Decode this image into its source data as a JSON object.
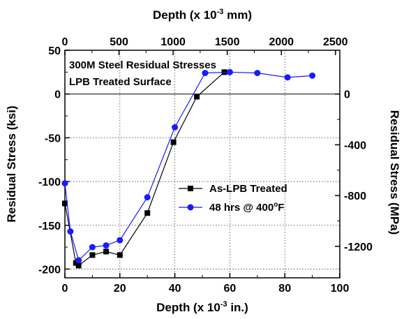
{
  "chart_data": {
    "type": "line",
    "annotation_lines": [
      "300M Steel Residual Stresses",
      "LPB Treated Surface"
    ],
    "xlabel_bottom": "Depth (x 10",
    "xlabel_bottom_exp": "-3",
    "xlabel_bottom_unit": " in.)",
    "xlabel_top": "Depth (x 10",
    "xlabel_top_exp": "-3",
    "xlabel_top_unit": " mm)",
    "ylabel_left": "Residual Stress (ksi)",
    "ylabel_right": "Residual Stress (MPa)",
    "xlim": [
      0,
      100
    ],
    "ylim": [
      -210,
      50
    ],
    "x_top_lim_mm": [
      0,
      2540
    ],
    "x_ticks": [
      0,
      20,
      40,
      60,
      80,
      100
    ],
    "x_tick_labels": [
      "0",
      "20",
      "40",
      "60",
      "80",
      "100"
    ],
    "x_top_ticks": [
      0,
      500,
      1000,
      1500,
      2000,
      2500
    ],
    "x_top_tick_labels": [
      "0",
      "500",
      "1000",
      "1500",
      "2000",
      "2500"
    ],
    "y_ticks": [
      50,
      0,
      -50,
      -100,
      -150,
      -200
    ],
    "y_tick_labels": [
      "50",
      "0",
      "-50",
      "-100",
      "-150",
      "-200"
    ],
    "y_right_ticks_mpa": [
      0,
      -400,
      -800,
      -1200
    ],
    "y_right_tick_labels": [
      "0",
      "-400",
      "-800",
      "-1200"
    ],
    "grid": true,
    "zero_line": true,
    "legend_position": "center-right",
    "series": [
      {
        "name": "As-LPB Treated",
        "color": "#000000",
        "marker": "square",
        "x": [
          0,
          4,
          5,
          10,
          15,
          20,
          30,
          39.5,
          48,
          58
        ],
        "y": [
          -125,
          -193,
          -196,
          -184,
          -180,
          -184,
          -136,
          -55,
          -3,
          25
        ]
      },
      {
        "name": "48 hrs @ 400°F",
        "name_main": "48 hrs @ 400",
        "name_sup": "o",
        "name_end": "F",
        "color": "#1a1aff",
        "marker": "circle",
        "x": [
          0,
          2,
          5,
          10,
          15,
          20,
          30,
          40,
          51,
          60,
          70,
          81,
          90
        ],
        "y": [
          -102,
          -157,
          -190,
          -175,
          -173,
          -167,
          -118,
          -38,
          24,
          25,
          24,
          19,
          21
        ]
      }
    ]
  }
}
